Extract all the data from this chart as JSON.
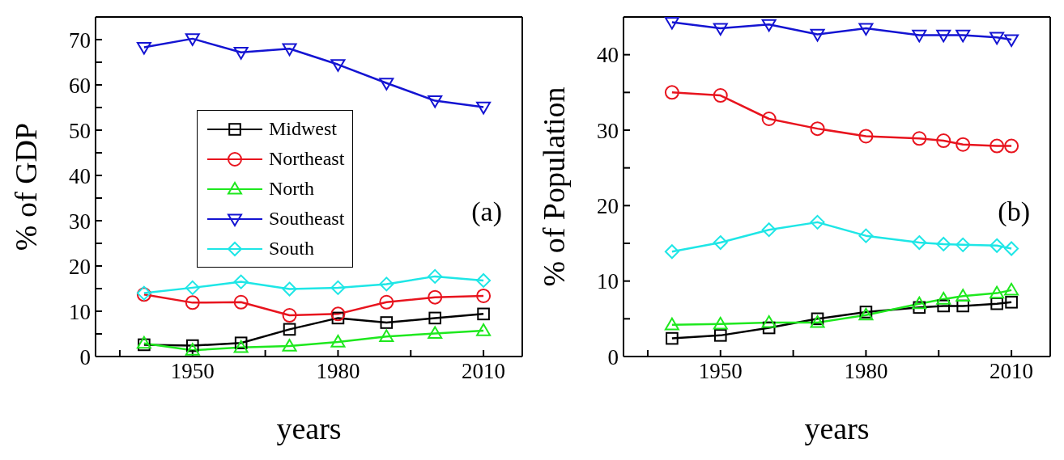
{
  "chart_data": [
    {
      "type": "line",
      "xlabel": "years",
      "ylabel": "% of GDP",
      "annotations": [
        "(a)"
      ],
      "x": [
        1940,
        1950,
        1960,
        1970,
        1980,
        1990,
        2000,
        2010
      ],
      "xlim": [
        1930,
        2018
      ],
      "xticks": [
        {
          "value": 1935,
          "label": null
        },
        1950,
        {
          "value": 1965,
          "label": null
        },
        1980,
        {
          "value": 1995,
          "label": null
        },
        2010
      ],
      "ylim": [
        0,
        75
      ],
      "yticks": [
        0,
        {
          "value": 5,
          "label": null
        },
        10,
        {
          "value": 15,
          "label": null
        },
        20,
        {
          "value": 25,
          "label": null
        },
        30,
        {
          "value": 35,
          "label": null
        },
        40,
        {
          "value": 45,
          "label": null
        },
        50,
        {
          "value": 55,
          "label": null
        },
        60,
        {
          "value": 65,
          "label": null
        },
        70
      ],
      "grid": false,
      "legend": "left",
      "line_style": "solid",
      "series": [
        {
          "name": "Midwest",
          "color": "#000000",
          "marker": "square",
          "values": [
            2.6,
            2.4,
            3.0,
            6.0,
            8.5,
            7.5,
            8.5,
            9.4
          ]
        },
        {
          "name": "Northeast",
          "color": "#e8141e",
          "marker": "circle",
          "values": [
            13.7,
            11.9,
            12.0,
            9.1,
            9.4,
            12.0,
            13.1,
            13.4
          ]
        },
        {
          "name": "North",
          "color": "#1ee81e",
          "marker": "triangle",
          "values": [
            2.9,
            1.4,
            2.0,
            2.3,
            3.2,
            4.4,
            5.1,
            5.7
          ]
        },
        {
          "name": "Southeast",
          "color": "#1414d2",
          "marker": "triangle-down",
          "values": [
            68.3,
            70.2,
            67.2,
            68.0,
            64.5,
            60.4,
            56.5,
            55.1
          ]
        },
        {
          "name": "South",
          "color": "#1ee6e6",
          "marker": "diamond",
          "values": [
            14.0,
            15.2,
            16.5,
            14.9,
            15.2,
            16.0,
            17.7,
            16.8
          ]
        }
      ]
    },
    {
      "type": "line",
      "xlabel": "years",
      "ylabel": "% of Population",
      "annotations": [
        "(b)"
      ],
      "x": [
        1940,
        1950,
        1960,
        1970,
        1980,
        1991,
        1996,
        2000,
        2007,
        2010
      ],
      "xlim": [
        1930,
        2018
      ],
      "xticks": [
        {
          "value": 1935,
          "label": null
        },
        1950,
        {
          "value": 1965,
          "label": null
        },
        1980,
        {
          "value": 1995,
          "label": null
        },
        2010
      ],
      "ylim": [
        0,
        45
      ],
      "yticks": [
        0,
        {
          "value": 5,
          "label": null
        },
        10,
        {
          "value": 15,
          "label": null
        },
        20,
        {
          "value": 25,
          "label": null
        },
        30,
        {
          "value": 35,
          "label": null
        },
        40
      ],
      "grid": false,
      "legend": false,
      "line_style": "solid",
      "series": [
        {
          "color": "#000000",
          "marker": "square",
          "values": [
            2.4,
            2.8,
            3.8,
            5.0,
            5.9,
            6.5,
            6.7,
            6.7,
            7.0,
            7.2
          ]
        },
        {
          "color": "#e8141e",
          "marker": "circle",
          "values": [
            35.0,
            34.6,
            31.5,
            30.2,
            29.2,
            28.9,
            28.6,
            28.1,
            27.9,
            27.9
          ]
        },
        {
          "color": "#1ee81e",
          "marker": "triangle",
          "values": [
            4.2,
            4.3,
            4.5,
            4.5,
            5.5,
            7.0,
            7.6,
            8.0,
            8.4,
            8.8
          ]
        },
        {
          "color": "#1414d2",
          "marker": "triangle-down",
          "values": [
            44.3,
            43.5,
            44.0,
            42.7,
            43.5,
            42.6,
            42.6,
            42.6,
            42.3,
            42.0
          ]
        },
        {
          "color": "#1ee6e6",
          "marker": "diamond",
          "values": [
            13.9,
            15.1,
            16.8,
            17.8,
            16.0,
            15.1,
            14.9,
            14.8,
            14.7,
            14.3
          ]
        }
      ]
    }
  ]
}
